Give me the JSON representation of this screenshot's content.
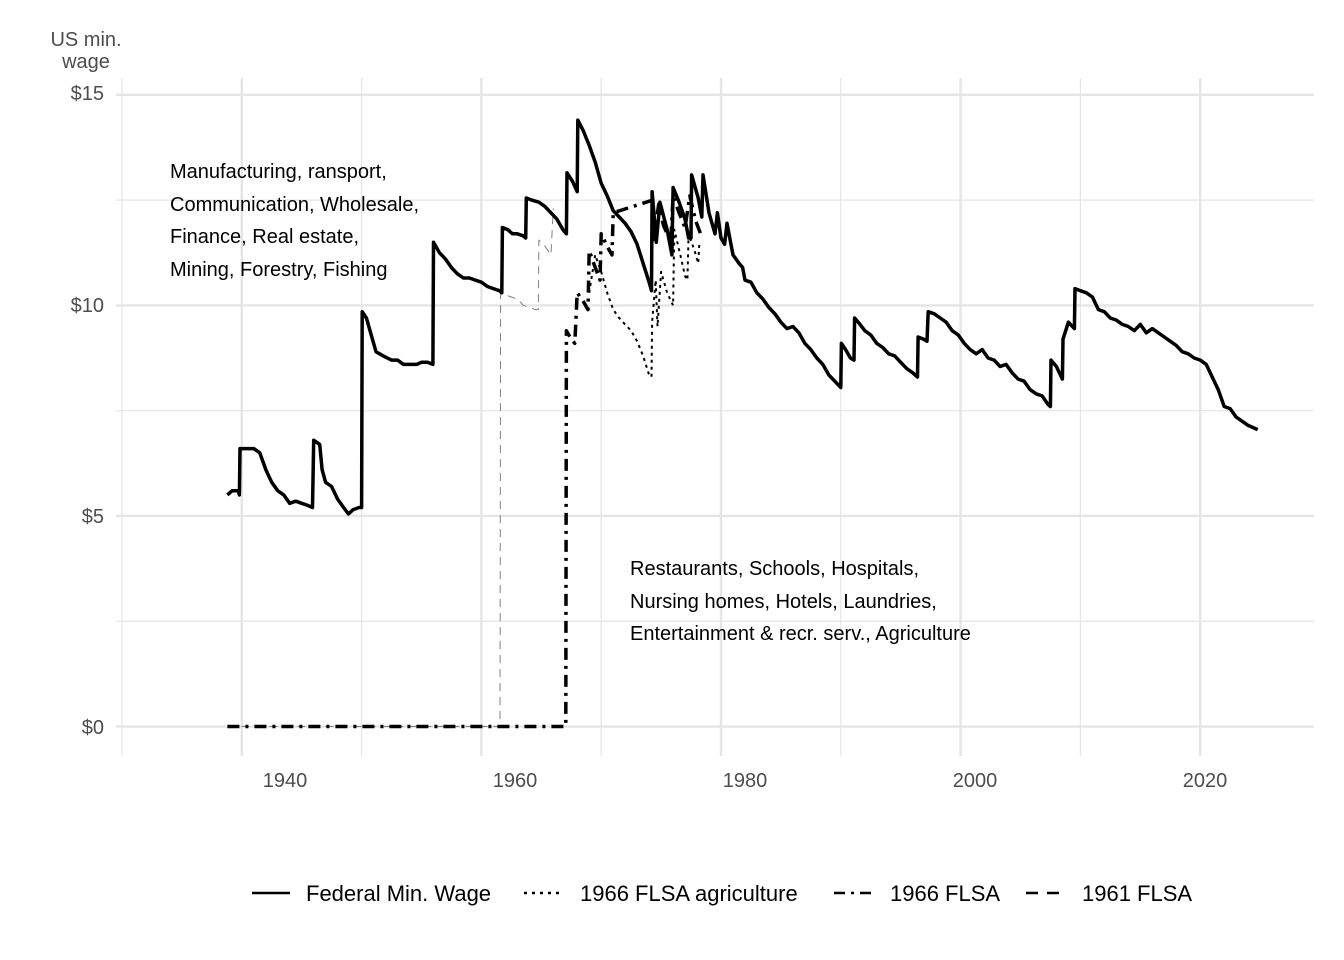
{
  "chart_data": {
    "type": "line",
    "ylabel_lines": [
      "US min.",
      "wage"
    ],
    "xlim": [
      1929.5,
      2029.5
    ],
    "ylim": [
      -0.7,
      15.4
    ],
    "x_ticks": [
      1940,
      1960,
      1980,
      2000,
      2020
    ],
    "x_tick_labels": [
      "1940",
      "1960",
      "1980",
      "2000",
      "2020"
    ],
    "x_minor_ticks": [
      1930,
      1950,
      1970,
      1990,
      2010
    ],
    "y_ticks": [
      0,
      5,
      10,
      15
    ],
    "y_tick_labels": [
      "$0",
      "$5",
      "$10",
      "$15"
    ],
    "y_minor_ticks": [
      2.5,
      7.5,
      12.5
    ],
    "grid": true,
    "legend_position": "bottom",
    "colors": {
      "line": "#000000",
      "line_1961": "#808080",
      "grid": "#e5e5e5",
      "text": "#4d4d4d"
    },
    "annotations": [
      {
        "id": "covered-1938",
        "x": 1930.1,
        "y": 13.1,
        "lines": [
          "Manufacturing, ransport,",
          "Communication, Wholesale,",
          "Finance, Real estate,",
          "Mining, Forestry, Fishing"
        ]
      },
      {
        "id": "covered-1966",
        "x": 1970.1,
        "y": 3.7,
        "lines": [
          "Restaurants, Schools, Hospitals,",
          "Nursing homes, Hotels, Laundries,",
          "Entertainment & recr. serv., Agriculture"
        ]
      }
    ],
    "series": [
      {
        "name": "Federal Min. Wage",
        "dash": "solid",
        "points": [
          [
            1938.8,
            5.5
          ],
          [
            1939.2,
            5.6
          ],
          [
            1939.7,
            5.6
          ],
          [
            1939.8,
            5.5
          ],
          [
            1939.85,
            6.6
          ],
          [
            1940.3,
            6.6
          ],
          [
            1941,
            6.6
          ],
          [
            1941.5,
            6.5
          ],
          [
            1942,
            6.1
          ],
          [
            1942.5,
            5.8
          ],
          [
            1943,
            5.6
          ],
          [
            1943.5,
            5.5
          ],
          [
            1944,
            5.3
          ],
          [
            1944.5,
            5.35
          ],
          [
            1945,
            5.3
          ],
          [
            1945.5,
            5.25
          ],
          [
            1945.9,
            5.2
          ],
          [
            1946.0,
            6.8
          ],
          [
            1946.5,
            6.7
          ],
          [
            1946.7,
            6.1
          ],
          [
            1947,
            5.8
          ],
          [
            1947.5,
            5.7
          ],
          [
            1948,
            5.4
          ],
          [
            1948.5,
            5.2
          ],
          [
            1948.9,
            5.05
          ],
          [
            1949.3,
            5.15
          ],
          [
            1949.8,
            5.2
          ],
          [
            1950.0,
            5.2
          ],
          [
            1950.05,
            9.85
          ],
          [
            1950.4,
            9.7
          ],
          [
            1950.8,
            9.3
          ],
          [
            1951.2,
            8.9
          ],
          [
            1951.8,
            8.8
          ],
          [
            1952.5,
            8.7
          ],
          [
            1953,
            8.7
          ],
          [
            1953.5,
            8.6
          ],
          [
            1954,
            8.6
          ],
          [
            1954.6,
            8.6
          ],
          [
            1955,
            8.65
          ],
          [
            1955.5,
            8.65
          ],
          [
            1955.95,
            8.6
          ],
          [
            1956.0,
            11.5
          ],
          [
            1956.5,
            11.25
          ],
          [
            1957,
            11.1
          ],
          [
            1957.5,
            10.9
          ],
          [
            1958,
            10.75
          ],
          [
            1958.5,
            10.65
          ],
          [
            1959,
            10.65
          ],
          [
            1959.5,
            10.6
          ],
          [
            1960,
            10.55
          ],
          [
            1960.5,
            10.45
          ],
          [
            1961,
            10.4
          ],
          [
            1961.5,
            10.35
          ],
          [
            1961.7,
            10.3
          ],
          [
            1961.75,
            11.85
          ],
          [
            1962.2,
            11.8
          ],
          [
            1962.6,
            11.7
          ],
          [
            1963,
            11.7
          ],
          [
            1963.5,
            11.65
          ],
          [
            1963.7,
            11.6
          ],
          [
            1963.75,
            12.55
          ],
          [
            1964.2,
            12.5
          ],
          [
            1964.8,
            12.45
          ],
          [
            1965.3,
            12.35
          ],
          [
            1965.8,
            12.2
          ],
          [
            1966.3,
            12.05
          ],
          [
            1966.8,
            11.8
          ],
          [
            1967.1,
            11.7
          ],
          [
            1967.15,
            13.15
          ],
          [
            1967.6,
            12.95
          ],
          [
            1968.0,
            12.7
          ],
          [
            1968.05,
            14.4
          ],
          [
            1968.5,
            14.15
          ],
          [
            1969,
            13.8
          ],
          [
            1969.5,
            13.4
          ],
          [
            1970,
            12.9
          ],
          [
            1970.5,
            12.6
          ],
          [
            1971,
            12.25
          ],
          [
            1971.5,
            12.1
          ],
          [
            1972,
            11.95
          ],
          [
            1972.5,
            11.75
          ],
          [
            1973,
            11.45
          ],
          [
            1973.5,
            11.0
          ],
          [
            1974.0,
            10.55
          ],
          [
            1974.2,
            10.35
          ],
          [
            1974.25,
            12.7
          ],
          [
            1974.6,
            11.5
          ],
          [
            1974.9,
            12.45
          ],
          [
            1975.5,
            11.8
          ],
          [
            1975.9,
            11.2
          ],
          [
            1976.0,
            12.8
          ],
          [
            1976.5,
            12.45
          ],
          [
            1977.0,
            12.05
          ],
          [
            1977.3,
            11.6
          ],
          [
            1977.5,
            11.6
          ],
          [
            1977.55,
            13.1
          ],
          [
            1978.1,
            12.55
          ],
          [
            1978.4,
            12.1
          ],
          [
            1978.5,
            13.1
          ],
          [
            1979.0,
            12.2
          ],
          [
            1979.5,
            11.7
          ],
          [
            1979.7,
            12.2
          ],
          [
            1980.0,
            11.6
          ],
          [
            1980.3,
            11.45
          ],
          [
            1980.5,
            11.95
          ],
          [
            1981.0,
            11.2
          ],
          [
            1981.5,
            11.0
          ],
          [
            1981.8,
            10.9
          ],
          [
            1982,
            10.6
          ],
          [
            1982.5,
            10.55
          ],
          [
            1983,
            10.3
          ],
          [
            1983.5,
            10.15
          ],
          [
            1984,
            9.95
          ],
          [
            1984.5,
            9.8
          ],
          [
            1985,
            9.6
          ],
          [
            1985.5,
            9.45
          ],
          [
            1986,
            9.5
          ],
          [
            1986.5,
            9.35
          ],
          [
            1987,
            9.1
          ],
          [
            1987.5,
            8.95
          ],
          [
            1988,
            8.75
          ],
          [
            1988.5,
            8.6
          ],
          [
            1989,
            8.35
          ],
          [
            1989.5,
            8.2
          ],
          [
            1990.0,
            8.05
          ],
          [
            1990.05,
            9.1
          ],
          [
            1990.4,
            8.95
          ],
          [
            1990.8,
            8.75
          ],
          [
            1991.1,
            8.7
          ],
          [
            1991.15,
            9.7
          ],
          [
            1991.6,
            9.55
          ],
          [
            1992,
            9.4
          ],
          [
            1992.5,
            9.3
          ],
          [
            1993,
            9.1
          ],
          [
            1993.5,
            9.0
          ],
          [
            1994,
            8.85
          ],
          [
            1994.5,
            8.8
          ],
          [
            1995,
            8.65
          ],
          [
            1995.5,
            8.5
          ],
          [
            1996.0,
            8.4
          ],
          [
            1996.4,
            8.3
          ],
          [
            1996.45,
            9.25
          ],
          [
            1996.9,
            9.2
          ],
          [
            1997.2,
            9.15
          ],
          [
            1997.3,
            9.85
          ],
          [
            1997.8,
            9.8
          ],
          [
            1998.3,
            9.7
          ],
          [
            1998.8,
            9.6
          ],
          [
            1999.3,
            9.4
          ],
          [
            1999.8,
            9.3
          ],
          [
            2000.3,
            9.1
          ],
          [
            2000.8,
            8.95
          ],
          [
            2001.3,
            8.85
          ],
          [
            2001.8,
            8.95
          ],
          [
            2002.3,
            8.75
          ],
          [
            2002.8,
            8.7
          ],
          [
            2003.3,
            8.55
          ],
          [
            2003.8,
            8.6
          ],
          [
            2004.3,
            8.4
          ],
          [
            2004.8,
            8.25
          ],
          [
            2005.3,
            8.2
          ],
          [
            2005.8,
            8.0
          ],
          [
            2006.3,
            7.9
          ],
          [
            2006.8,
            7.85
          ],
          [
            2007.3,
            7.65
          ],
          [
            2007.5,
            7.6
          ],
          [
            2007.55,
            8.7
          ],
          [
            2008.0,
            8.55
          ],
          [
            2008.5,
            8.25
          ],
          [
            2008.55,
            9.2
          ],
          [
            2009.0,
            9.6
          ],
          [
            2009.5,
            9.45
          ],
          [
            2009.55,
            10.4
          ],
          [
            2010.0,
            10.35
          ],
          [
            2010.5,
            10.3
          ],
          [
            2011.0,
            10.2
          ],
          [
            2011.5,
            9.9
          ],
          [
            2012.0,
            9.85
          ],
          [
            2012.5,
            9.7
          ],
          [
            2013.0,
            9.65
          ],
          [
            2013.5,
            9.55
          ],
          [
            2014.0,
            9.5
          ],
          [
            2014.5,
            9.4
          ],
          [
            2015.0,
            9.55
          ],
          [
            2015.5,
            9.35
          ],
          [
            2016.0,
            9.45
          ],
          [
            2016.5,
            9.35
          ],
          [
            2017.0,
            9.25
          ],
          [
            2017.5,
            9.15
          ],
          [
            2018.0,
            9.05
          ],
          [
            2018.5,
            8.9
          ],
          [
            2019.0,
            8.85
          ],
          [
            2019.5,
            8.75
          ],
          [
            2020.0,
            8.7
          ],
          [
            2020.5,
            8.6
          ],
          [
            2021.0,
            8.3
          ],
          [
            2021.5,
            8.0
          ],
          [
            2022.0,
            7.6
          ],
          [
            2022.5,
            7.55
          ],
          [
            2023.0,
            7.35
          ],
          [
            2023.5,
            7.25
          ],
          [
            2024.0,
            7.15
          ],
          [
            2024.8,
            7.05
          ]
        ]
      },
      {
        "name": "1966 FLSA agriculture",
        "dash": "dotted",
        "points": [
          [
            1969.0,
            10.3
          ],
          [
            1969.5,
            11.2
          ],
          [
            1970.0,
            10.8
          ],
          [
            1970.5,
            10.3
          ],
          [
            1971.0,
            9.9
          ],
          [
            1971.5,
            9.7
          ],
          [
            1972.0,
            9.55
          ],
          [
            1972.5,
            9.4
          ],
          [
            1973.0,
            9.15
          ],
          [
            1973.5,
            8.8
          ],
          [
            1974.0,
            8.35
          ],
          [
            1974.2,
            8.3
          ],
          [
            1974.25,
            9.6
          ],
          [
            1974.55,
            10.6
          ],
          [
            1974.7,
            9.5
          ],
          [
            1975.0,
            10.8
          ],
          [
            1975.5,
            10.3
          ],
          [
            1976.0,
            10.0
          ],
          [
            1976.1,
            11.8
          ],
          [
            1976.6,
            11.2
          ],
          [
            1977.0,
            10.7
          ],
          [
            1977.2,
            10.6
          ],
          [
            1977.3,
            11.7
          ],
          [
            1977.8,
            11.3
          ],
          [
            1978.1,
            11.0
          ],
          [
            1978.2,
            11.5
          ]
        ]
      },
      {
        "name": "1966 FLSA",
        "dash": "dashdot",
        "points": [
          [
            1938.8,
            0
          ],
          [
            1967.05,
            0
          ],
          [
            1967.1,
            9.4
          ],
          [
            1967.5,
            9.2
          ],
          [
            1967.8,
            9.1
          ],
          [
            1968.0,
            10.3
          ],
          [
            1968.5,
            10.1
          ],
          [
            1968.9,
            9.9
          ],
          [
            1969.0,
            11.3
          ],
          [
            1969.5,
            10.9
          ],
          [
            1969.9,
            10.6
          ],
          [
            1970.0,
            11.7
          ],
          [
            1970.5,
            11.4
          ],
          [
            1970.9,
            11.2
          ],
          [
            1971.0,
            12.2
          ],
          [
            1974.3,
            12.5
          ],
          [
            1974.35,
            11.5
          ],
          [
            1974.8,
            12.4
          ],
          [
            1975.2,
            11.9
          ],
          [
            1975.8,
            11.5
          ],
          [
            1976.0,
            12.6
          ],
          [
            1976.5,
            12.2
          ],
          [
            1977.0,
            11.85
          ],
          [
            1977.4,
            12.6
          ],
          [
            1977.9,
            12.0
          ],
          [
            1978.3,
            11.7
          ]
        ]
      },
      {
        "name": "1961 FLSA",
        "dash": "dashed",
        "points": [
          [
            1938.8,
            0
          ],
          [
            1961.55,
            0
          ],
          [
            1961.6,
            10.3
          ],
          [
            1962.0,
            10.25
          ],
          [
            1962.5,
            10.2
          ],
          [
            1963.0,
            10.15
          ],
          [
            1963.5,
            10.0
          ],
          [
            1964.0,
            9.95
          ],
          [
            1964.5,
            9.9
          ],
          [
            1964.75,
            9.9
          ],
          [
            1964.8,
            11.55
          ],
          [
            1965.2,
            11.45
          ],
          [
            1965.8,
            11.2
          ],
          [
            1966.0,
            12.3
          ]
        ]
      }
    ]
  }
}
